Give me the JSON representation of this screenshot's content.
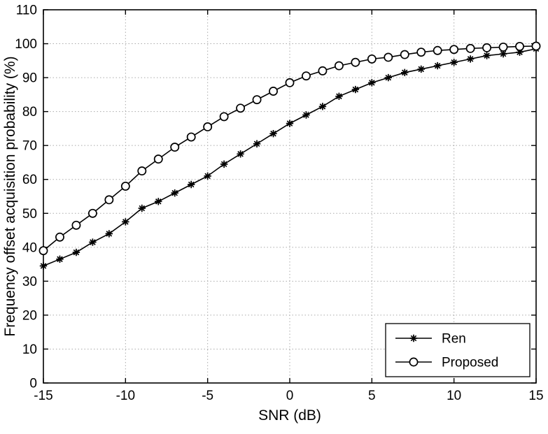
{
  "figure": {
    "background_color": "#ffffff",
    "axis_color": "#000000",
    "grid_color": "#aaaaaa",
    "grid_style": "dotted"
  },
  "chart_data": {
    "type": "line",
    "title": "",
    "xlabel": "SNR (dB)",
    "ylabel": "Frequency offset acquisition probability (%)",
    "xlim": [
      -15,
      15
    ],
    "ylim": [
      0,
      110
    ],
    "x_ticks": [
      -15,
      -10,
      -5,
      0,
      5,
      10,
      15
    ],
    "y_ticks": [
      0,
      10,
      20,
      30,
      40,
      50,
      60,
      70,
      80,
      90,
      100,
      110
    ],
    "grid": "dotted",
    "legend_position": "lower right",
    "x": [
      -15,
      -14,
      -13,
      -12,
      -11,
      -10,
      -9,
      -8,
      -7,
      -6,
      -5,
      -4,
      -3,
      -2,
      -1,
      0,
      1,
      2,
      3,
      4,
      5,
      6,
      7,
      8,
      9,
      10,
      11,
      12,
      13,
      14,
      15
    ],
    "series": [
      {
        "name": "Ren",
        "marker": "asterisk",
        "color": "#000000",
        "values": [
          34.5,
          36.5,
          38.5,
          41.5,
          44,
          47.5,
          51.5,
          53.5,
          56,
          58.5,
          61,
          64.5,
          67.5,
          70.5,
          73.5,
          76.5,
          79,
          81.5,
          84.5,
          86.5,
          88.5,
          90,
          91.5,
          92.5,
          93.5,
          94.5,
          95.5,
          96.5,
          97,
          97.5,
          98.5
        ]
      },
      {
        "name": "Proposed",
        "marker": "circle",
        "color": "#000000",
        "values": [
          39,
          43,
          46.5,
          50,
          54,
          58,
          62.5,
          66,
          69.5,
          72.5,
          75.5,
          78.5,
          81,
          83.5,
          86,
          88.5,
          90.5,
          92,
          93.5,
          94.5,
          95.5,
          96,
          96.8,
          97.5,
          98,
          98.3,
          98.6,
          98.8,
          99,
          99.2,
          99.3
        ]
      }
    ]
  }
}
